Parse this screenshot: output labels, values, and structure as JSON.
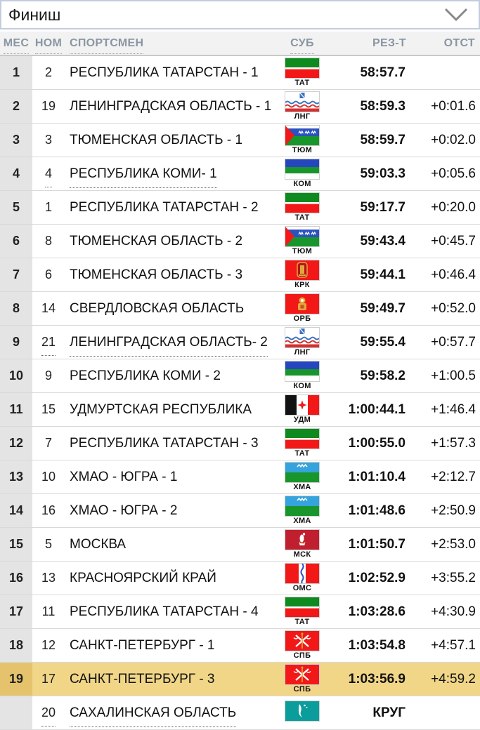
{
  "filter": {
    "value": "Финиш",
    "chevron_icon": "chevron-down"
  },
  "table": {
    "columns": [
      {
        "key": "place",
        "label": "МЕС",
        "underlined": true
      },
      {
        "key": "bib",
        "label": "НОМ",
        "underlined": true
      },
      {
        "key": "name",
        "label": "СПОРТСМЕН",
        "underlined": true
      },
      {
        "key": "flag",
        "label": "СУБ",
        "underlined": true
      },
      {
        "key": "result",
        "label": "РЕЗ-Т",
        "underlined": false
      },
      {
        "key": "gap",
        "label": "ОТСТ",
        "underlined": false
      }
    ],
    "rows": [
      {
        "place": "1",
        "bib": "2",
        "name": "РЕСПУБЛИКА ТАТАРСТАН - 1",
        "flag": "TAT",
        "flag_label": "ТАТ",
        "result": "58:57.7",
        "gap": ""
      },
      {
        "place": "2",
        "bib": "19",
        "name": "ЛЕНИНГРАДСКАЯ ОБЛАСТЬ - 1",
        "flag": "LNG",
        "flag_label": "ЛНГ",
        "result": "58:59.3",
        "gap": "+0:01.6"
      },
      {
        "place": "3",
        "bib": "3",
        "name": "ТЮМЕНСКАЯ ОБЛАСТЬ - 1",
        "flag": "TYUM",
        "flag_label": "ТЮМ",
        "result": "58:59.7",
        "gap": "+0:02.0"
      },
      {
        "place": "4",
        "bib": "4",
        "name": "РЕСПУБЛИКА КОМИ- 1",
        "flag": "KOM",
        "flag_label": "КОМ",
        "result": "59:03.3",
        "gap": "+0:05.6",
        "dotted": true
      },
      {
        "place": "5",
        "bib": "1",
        "name": "РЕСПУБЛИКА ТАТАРСТАН - 2",
        "flag": "TAT",
        "flag_label": "ТАТ",
        "result": "59:17.7",
        "gap": "+0:20.0"
      },
      {
        "place": "6",
        "bib": "8",
        "name": "ТЮМЕНСКАЯ ОБЛАСТЬ - 2",
        "flag": "TYUM",
        "flag_label": "ТЮМ",
        "result": "59:43.4",
        "gap": "+0:45.7"
      },
      {
        "place": "7",
        "bib": "6",
        "name": "ТЮМЕНСКАЯ ОБЛАСТЬ - 3",
        "flag": "KRK",
        "flag_label": "КРК",
        "result": "59:44.1",
        "gap": "+0:46.4"
      },
      {
        "place": "8",
        "bib": "14",
        "name": "СВЕРДЛОВСКАЯ ОБЛАСТЬ",
        "flag": "ORB",
        "flag_label": "ОРБ",
        "result": "59:49.7",
        "gap": "+0:52.0"
      },
      {
        "place": "9",
        "bib": "21",
        "name": "ЛЕНИНГРАДСКАЯ ОБЛАСТЬ- 2",
        "flag": "LNG",
        "flag_label": "ЛНГ",
        "result": "59:55.4",
        "gap": "+0:57.7",
        "dotted": true
      },
      {
        "place": "10",
        "bib": "9",
        "name": "РЕСПУБЛИКА КОМИ - 2",
        "flag": "KOM",
        "flag_label": "КОМ",
        "result": "59:58.2",
        "gap": "+1:00.5"
      },
      {
        "place": "11",
        "bib": "15",
        "name": "УДМУРТСКАЯ РЕСПУБЛИКА",
        "flag": "UDM",
        "flag_label": "УДМ",
        "result": "1:00:44.1",
        "gap": "+1:46.4"
      },
      {
        "place": "12",
        "bib": "7",
        "name": "РЕСПУБЛИКА ТАТАРСТАН - 3",
        "flag": "TAT",
        "flag_label": "ТАТ",
        "result": "1:00:55.0",
        "gap": "+1:57.3"
      },
      {
        "place": "13",
        "bib": "10",
        "name": "ХМАО - ЮГРА - 1",
        "flag": "HMA",
        "flag_label": "ХМА",
        "result": "1:01:10.4",
        "gap": "+2:12.7"
      },
      {
        "place": "14",
        "bib": "16",
        "name": "ХМАО - ЮГРА - 2",
        "flag": "HMA",
        "flag_label": "ХМА",
        "result": "1:01:48.6",
        "gap": "+2:50.9"
      },
      {
        "place": "15",
        "bib": "5",
        "name": "МОСКВА",
        "flag": "MSK",
        "flag_label": "МСК",
        "result": "1:01:50.7",
        "gap": "+2:53.0"
      },
      {
        "place": "16",
        "bib": "13",
        "name": "КРАСНОЯРСКИЙ КРАЙ",
        "flag": "OMS",
        "flag_label": "ОМС",
        "result": "1:02:52.9",
        "gap": "+3:55.2"
      },
      {
        "place": "17",
        "bib": "11",
        "name": "РЕСПУБЛИКА ТАТАРСТАН - 4",
        "flag": "TAT",
        "flag_label": "ТАТ",
        "result": "1:03:28.6",
        "gap": "+4:30.9"
      },
      {
        "place": "18",
        "bib": "12",
        "name": "САНКТ-ПЕТЕРБУРГ - 1",
        "flag": "SPB",
        "flag_label": "СПБ",
        "result": "1:03:54.8",
        "gap": "+4:57.1"
      },
      {
        "place": "19",
        "bib": "17",
        "name": "САНКТ-ПЕТЕРБУРГ - 3",
        "flag": "SPB",
        "flag_label": "СПБ",
        "result": "1:03:56.9",
        "gap": "+4:59.2",
        "highlighted": true
      },
      {
        "place": "",
        "bib": "20",
        "name": "САХАЛИНСКАЯ ОБЛАСТЬ",
        "flag": "SAH",
        "flag_label": "",
        "result": "КРУГ",
        "gap": "",
        "dotted": true
      }
    ]
  },
  "colors": {
    "highlight_row": "#f1d688",
    "highlight_place_cell": "#e5c36c",
    "place_column_bg": "#e4e4e4",
    "header_bg": "#f2f2f2",
    "header_text": "#8a96a3",
    "select_border": "#c3cbdf"
  }
}
